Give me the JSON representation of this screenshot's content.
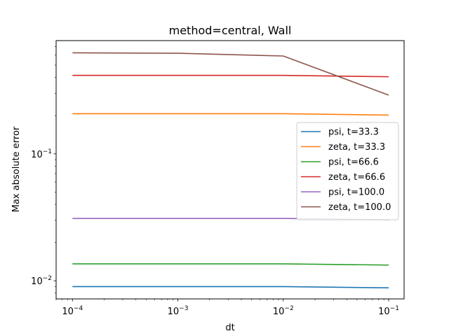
{
  "chart_data": {
    "type": "line",
    "title": "method=central, Wall",
    "xlabel": "dt",
    "ylabel": "Max absolute error",
    "xscale": "log",
    "yscale": "log",
    "xlim": [
      7e-05,
      0.14
    ],
    "ylim": [
      0.0072,
      0.78
    ],
    "x": [
      0.0001,
      0.001,
      0.01,
      0.1
    ],
    "x_ticks": [
      {
        "value": 0.0001,
        "base": "10",
        "exp": "−4"
      },
      {
        "value": 0.001,
        "base": "10",
        "exp": "−3"
      },
      {
        "value": 0.01,
        "base": "10",
        "exp": "−2"
      },
      {
        "value": 0.1,
        "base": "10",
        "exp": "−1"
      }
    ],
    "y_ticks": [
      {
        "value": 0.01,
        "base": "10",
        "exp": "−2"
      },
      {
        "value": 0.1,
        "base": "10",
        "exp": "−1"
      }
    ],
    "grid": false,
    "legend_position": "center-right",
    "series": [
      {
        "name": "psi, t=33.3",
        "color": "#1f77b4",
        "values": [
          0.009,
          0.009,
          0.009,
          0.0088
        ]
      },
      {
        "name": "zeta, t=33.3",
        "color": "#ff7f0e",
        "values": [
          0.207,
          0.207,
          0.207,
          0.202
        ]
      },
      {
        "name": "psi, t=66.6",
        "color": "#2ca02c",
        "values": [
          0.0136,
          0.0136,
          0.0136,
          0.0133
        ]
      },
      {
        "name": "zeta, t=66.6",
        "color": "#d62728",
        "values": [
          0.415,
          0.415,
          0.415,
          0.405
        ]
      },
      {
        "name": "psi, t=100.0",
        "color": "#9467bd",
        "values": [
          0.031,
          0.031,
          0.031,
          0.0303
        ]
      },
      {
        "name": "zeta, t=100.0",
        "color": "#8c564b",
        "values": [
          0.625,
          0.62,
          0.59,
          0.29
        ]
      }
    ]
  }
}
